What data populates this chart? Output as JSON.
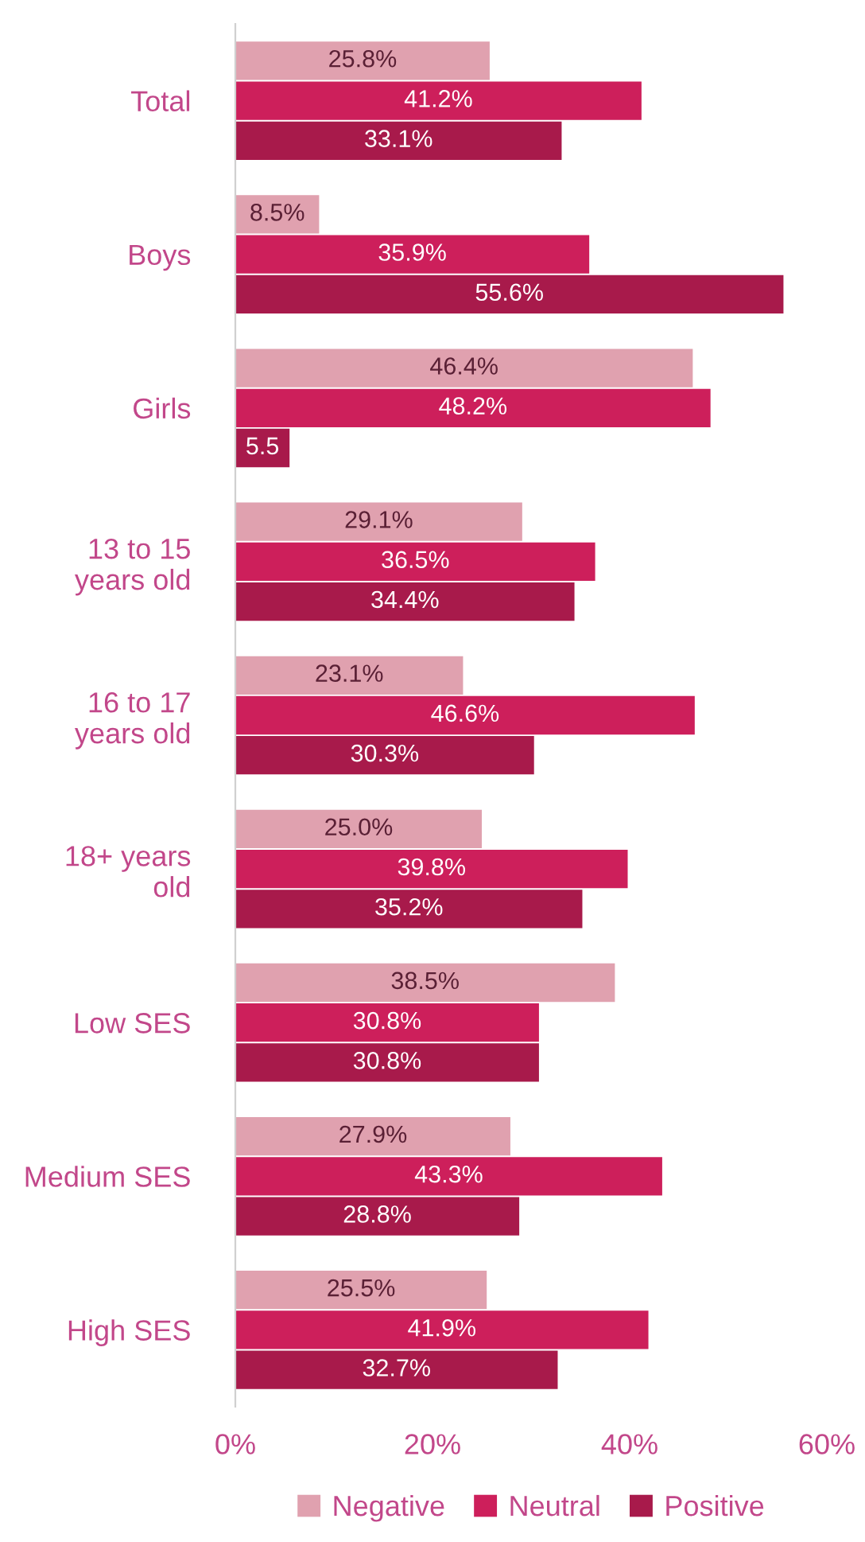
{
  "chart_data": {
    "type": "bar",
    "orientation": "horizontal",
    "categories": [
      "Total",
      "Boys",
      "Girls",
      "13 to 15\nyears old",
      "16 to 17\nyears old",
      "18+ years\nold",
      "Low SES",
      "Medium SES",
      "High SES"
    ],
    "series": [
      {
        "name": "Negative",
        "color": "#e0a1af",
        "values": [
          25.8,
          8.5,
          46.4,
          29.1,
          23.1,
          25.0,
          38.5,
          27.9,
          25.5
        ],
        "value_labels": [
          "25.8%",
          "8.5%",
          "46.4%",
          "29.1%",
          "23.1%",
          "25.0%",
          "38.5%",
          "27.9%",
          "25.5%"
        ]
      },
      {
        "name": "Neutral",
        "color": "#cd1f5b",
        "values": [
          41.2,
          35.9,
          48.2,
          36.5,
          46.6,
          39.8,
          30.8,
          43.3,
          41.9
        ],
        "value_labels": [
          "41.2%",
          "35.9%",
          "48.2%",
          "36.5%",
          "46.6%",
          "39.8%",
          "30.8%",
          "43.3%",
          "41.9%"
        ]
      },
      {
        "name": "Positive",
        "color": "#a81a4b",
        "values": [
          33.1,
          55.6,
          5.5,
          34.4,
          30.3,
          35.2,
          30.8,
          28.8,
          32.7
        ],
        "value_labels": [
          "33.1%",
          "55.6%",
          "5.5",
          "34.4%",
          "30.3%",
          "35.2%",
          "30.8%",
          "28.8%",
          "32.7%"
        ]
      }
    ],
    "xlim": [
      0,
      60
    ],
    "xticks": [
      {
        "value": 0,
        "label": "0%"
      },
      {
        "value": 20,
        "label": "20%"
      },
      {
        "value": 40,
        "label": "40%"
      },
      {
        "value": 60,
        "label": "60%"
      }
    ],
    "grid": false,
    "legend": "bottom"
  }
}
